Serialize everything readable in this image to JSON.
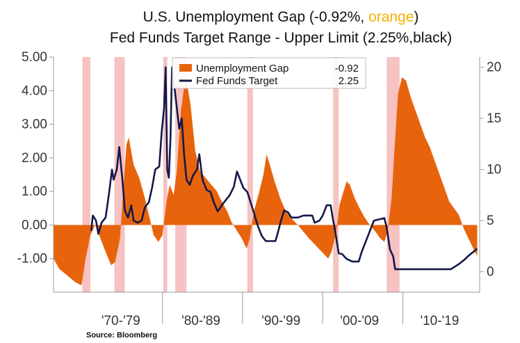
{
  "title": {
    "line1_prefix": "U.S. Unemployment Gap (-0.92%, ",
    "line1_highlight": "orange",
    "line1_suffix": ")",
    "line2": "Fed Funds Target Range - Upper Limit (2.25%,black)",
    "highlight_color": "#f2b000"
  },
  "source": "Source: Bloomberg",
  "colors": {
    "gap": "#e8640c",
    "fed": "#12184a",
    "recession": "#f6c2c2",
    "axis": "#9a9a9a"
  },
  "chart_data": {
    "type": "area",
    "left_axis": {
      "ylim": [
        -2.0,
        5.0
      ],
      "ticks": [
        "5.00",
        "4.00",
        "3.00",
        "2.00",
        "1.00",
        "0.00",
        "-1.00"
      ],
      "tick_values": [
        5,
        4,
        3,
        2,
        1,
        0,
        -1
      ]
    },
    "right_axis": {
      "ylim": [
        -2.0,
        21.0
      ],
      "ticks": [
        "20",
        "15",
        "10",
        "5",
        "0"
      ],
      "tick_values": [
        20,
        15,
        10,
        5,
        0
      ]
    },
    "x_axis": {
      "xlim": [
        1966.3,
        2019.5
      ],
      "decade_labels": [
        "'70-'79",
        "'80-'89",
        "'90-'99",
        "'00-'09",
        "'10-'19"
      ],
      "decade_centers": [
        1974.7,
        1984.7,
        1994.7,
        2004.5,
        2014.5
      ],
      "dividers": [
        1979.9,
        1989.9,
        1999.9,
        2009.9
      ]
    },
    "recessions": [
      [
        1969.9,
        1970.9
      ],
      [
        1973.9,
        1975.2
      ],
      [
        1980.0,
        1980.5
      ],
      [
        1981.5,
        1982.9
      ],
      [
        1990.5,
        1991.2
      ],
      [
        2001.2,
        2001.9
      ],
      [
        2007.9,
        2009.5
      ]
    ],
    "series": [
      {
        "name": "Unemployment Gap",
        "axis": "left",
        "latest": "-0.92",
        "points": [
          [
            1966.3,
            -1.0
          ],
          [
            1967.0,
            -1.3
          ],
          [
            1968.0,
            -1.5
          ],
          [
            1969.0,
            -1.7
          ],
          [
            1969.8,
            -1.8
          ],
          [
            1970.3,
            -1.0
          ],
          [
            1970.9,
            -0.3
          ],
          [
            1971.5,
            0.0
          ],
          [
            1972.0,
            -0.3
          ],
          [
            1972.8,
            -0.8
          ],
          [
            1973.5,
            -1.2
          ],
          [
            1974.0,
            -1.1
          ],
          [
            1974.6,
            -0.4
          ],
          [
            1975.0,
            1.0
          ],
          [
            1975.4,
            2.4
          ],
          [
            1975.7,
            2.6
          ],
          [
            1976.3,
            1.8
          ],
          [
            1977.0,
            1.4
          ],
          [
            1977.7,
            0.8
          ],
          [
            1978.3,
            0.2
          ],
          [
            1978.8,
            -0.3
          ],
          [
            1979.4,
            -0.5
          ],
          [
            1979.9,
            -0.3
          ],
          [
            1980.4,
            0.7
          ],
          [
            1980.8,
            1.2
          ],
          [
            1981.3,
            0.9
          ],
          [
            1981.7,
            1.6
          ],
          [
            1982.2,
            3.4
          ],
          [
            1982.6,
            4.1
          ],
          [
            1982.9,
            4.3
          ],
          [
            1983.4,
            3.6
          ],
          [
            1984.0,
            2.2
          ],
          [
            1984.6,
            1.6
          ],
          [
            1985.3,
            1.4
          ],
          [
            1986.0,
            1.2
          ],
          [
            1986.7,
            1.0
          ],
          [
            1987.3,
            0.7
          ],
          [
            1988.0,
            0.4
          ],
          [
            1988.5,
            0.1
          ],
          [
            1989.0,
            -0.1
          ],
          [
            1989.8,
            -0.4
          ],
          [
            1990.4,
            -0.7
          ],
          [
            1990.8,
            -0.4
          ],
          [
            1991.3,
            0.4
          ],
          [
            1992.0,
            1.0
          ],
          [
            1992.5,
            1.5
          ],
          [
            1992.9,
            2.1
          ],
          [
            1993.3,
            1.8
          ],
          [
            1993.9,
            1.3
          ],
          [
            1994.6,
            0.8
          ],
          [
            1995.3,
            0.4
          ],
          [
            1996.0,
            0.2
          ],
          [
            1996.8,
            0.0
          ],
          [
            1997.5,
            -0.2
          ],
          [
            1998.2,
            -0.4
          ],
          [
            1999.0,
            -0.6
          ],
          [
            1999.8,
            -0.8
          ],
          [
            2000.6,
            -1.0
          ],
          [
            2001.0,
            -0.8
          ],
          [
            2001.6,
            -0.2
          ],
          [
            2002.0,
            0.6
          ],
          [
            2002.5,
            1.0
          ],
          [
            2002.9,
            1.3
          ],
          [
            2003.3,
            1.2
          ],
          [
            2003.9,
            0.8
          ],
          [
            2004.5,
            0.5
          ],
          [
            2005.2,
            0.2
          ],
          [
            2005.8,
            0.0
          ],
          [
            2006.5,
            -0.2
          ],
          [
            2007.1,
            -0.4
          ],
          [
            2007.6,
            -0.5
          ],
          [
            2008.0,
            -0.2
          ],
          [
            2008.5,
            0.8
          ],
          [
            2008.9,
            2.4
          ],
          [
            2009.3,
            3.9
          ],
          [
            2009.8,
            4.4
          ],
          [
            2010.3,
            4.3
          ],
          [
            2010.9,
            3.8
          ],
          [
            2011.5,
            3.4
          ],
          [
            2012.1,
            3.0
          ],
          [
            2012.7,
            2.6
          ],
          [
            2013.3,
            2.3
          ],
          [
            2013.9,
            1.9
          ],
          [
            2014.5,
            1.5
          ],
          [
            2015.1,
            1.1
          ],
          [
            2015.7,
            0.7
          ],
          [
            2016.3,
            0.5
          ],
          [
            2016.9,
            0.3
          ],
          [
            2017.5,
            -0.1
          ],
          [
            2018.1,
            -0.4
          ],
          [
            2018.7,
            -0.7
          ],
          [
            2019.2,
            -0.92
          ]
        ]
      },
      {
        "name": "Fed Funds Target",
        "axis": "right",
        "latest": "2.25",
        "points": [
          [
            1971.0,
            4.0
          ],
          [
            1971.2,
            5.5
          ],
          [
            1971.6,
            5.0
          ],
          [
            1971.9,
            3.7
          ],
          [
            1972.3,
            4.8
          ],
          [
            1972.8,
            5.3
          ],
          [
            1973.2,
            7.5
          ],
          [
            1973.6,
            10.0
          ],
          [
            1973.8,
            9.0
          ],
          [
            1974.2,
            10.0
          ],
          [
            1974.5,
            12.2
          ],
          [
            1974.9,
            9.0
          ],
          [
            1975.2,
            6.0
          ],
          [
            1975.6,
            5.3
          ],
          [
            1976.0,
            6.5
          ],
          [
            1976.3,
            5.0
          ],
          [
            1976.8,
            4.8
          ],
          [
            1977.3,
            5.0
          ],
          [
            1977.7,
            6.3
          ],
          [
            1978.2,
            6.8
          ],
          [
            1978.6,
            8.2
          ],
          [
            1979.0,
            10.0
          ],
          [
            1979.5,
            10.3
          ],
          [
            1979.8,
            13.7
          ],
          [
            1980.1,
            16.0
          ],
          [
            1980.3,
            20.0
          ],
          [
            1980.5,
            10.0
          ],
          [
            1980.7,
            9.2
          ],
          [
            1980.9,
            13.0
          ],
          [
            1981.1,
            20.0
          ],
          [
            1981.4,
            18.0
          ],
          [
            1981.7,
            16.0
          ],
          [
            1982.0,
            14.0
          ],
          [
            1982.3,
            15.0
          ],
          [
            1982.6,
            11.5
          ],
          [
            1982.9,
            9.0
          ],
          [
            1983.3,
            8.5
          ],
          [
            1983.7,
            9.4
          ],
          [
            1984.2,
            10.0
          ],
          [
            1984.5,
            11.5
          ],
          [
            1984.9,
            9.0
          ],
          [
            1985.4,
            8.0
          ],
          [
            1985.9,
            7.8
          ],
          [
            1986.3,
            6.8
          ],
          [
            1986.8,
            5.9
          ],
          [
            1987.3,
            6.5
          ],
          [
            1987.8,
            7.0
          ],
          [
            1988.3,
            7.5
          ],
          [
            1988.8,
            8.3
          ],
          [
            1989.2,
            9.8
          ],
          [
            1989.6,
            9.0
          ],
          [
            1990.0,
            8.2
          ],
          [
            1990.5,
            7.8
          ],
          [
            1990.9,
            6.8
          ],
          [
            1991.3,
            5.8
          ],
          [
            1991.8,
            4.5
          ],
          [
            1992.3,
            3.5
          ],
          [
            1992.8,
            3.0
          ],
          [
            1993.5,
            3.0
          ],
          [
            1994.0,
            3.0
          ],
          [
            1994.3,
            3.8
          ],
          [
            1994.7,
            5.0
          ],
          [
            1995.1,
            6.0
          ],
          [
            1995.6,
            5.8
          ],
          [
            1996.0,
            5.3
          ],
          [
            1996.8,
            5.3
          ],
          [
            1997.5,
            5.5
          ],
          [
            1998.6,
            5.5
          ],
          [
            1998.9,
            4.8
          ],
          [
            1999.5,
            5.0
          ],
          [
            1999.9,
            5.5
          ],
          [
            2000.4,
            6.5
          ],
          [
            2000.9,
            6.5
          ],
          [
            2001.1,
            5.5
          ],
          [
            2001.5,
            3.8
          ],
          [
            2001.9,
            1.8
          ],
          [
            2002.3,
            1.75
          ],
          [
            2002.9,
            1.25
          ],
          [
            2003.6,
            1.0
          ],
          [
            2004.4,
            1.0
          ],
          [
            2004.8,
            2.0
          ],
          [
            2005.3,
            3.0
          ],
          [
            2005.8,
            4.0
          ],
          [
            2006.3,
            5.0
          ],
          [
            2007.6,
            5.25
          ],
          [
            2007.9,
            4.3
          ],
          [
            2008.3,
            2.2
          ],
          [
            2008.7,
            1.5
          ],
          [
            2008.95,
            0.25
          ],
          [
            2015.9,
            0.25
          ],
          [
            2016.4,
            0.5
          ],
          [
            2016.9,
            0.75
          ],
          [
            2017.3,
            1.0
          ],
          [
            2017.7,
            1.25
          ],
          [
            2018.0,
            1.5
          ],
          [
            2018.4,
            1.75
          ],
          [
            2018.8,
            2.0
          ],
          [
            2019.2,
            2.25
          ]
        ]
      }
    ],
    "legend": {
      "placement": "top-center",
      "entries": [
        {
          "label": "Unemployment Gap",
          "value": "-0.92"
        },
        {
          "label": "Fed Funds Target",
          "value": "2.25"
        }
      ]
    }
  }
}
